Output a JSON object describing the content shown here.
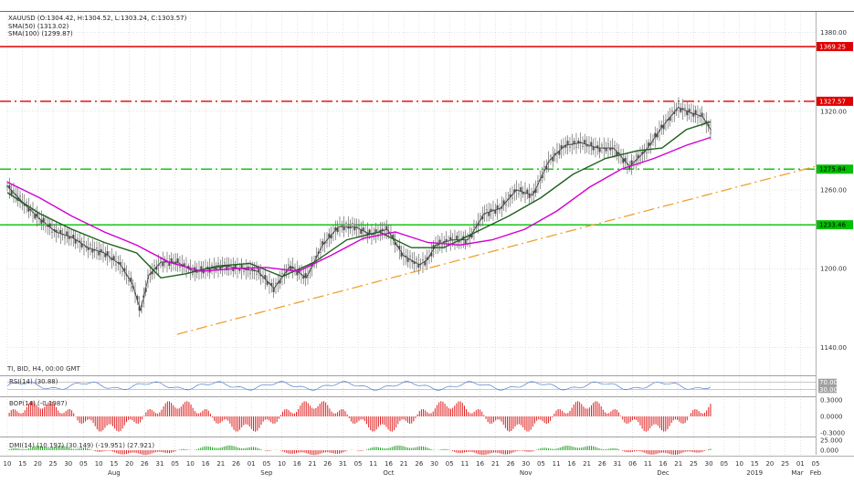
{
  "chart_data": [
    {
      "type": "line",
      "symbol": "XAUUSD",
      "legend": {
        "ohlc": "XAUUSD (O:1304.42, H:1304.52, L:1303.24, C:1303.57)",
        "sma50": "SMA(50) (1313.02)",
        "sma100": "SMA(100) (1299.87)",
        "footer": "TI, BID, H4, 00:00 GMT"
      },
      "ylim": [
        1125,
        1395
      ],
      "y_ticks": [
        "1380.00",
        "1320.00",
        "1260.00",
        "1200.00",
        "1140.00"
      ],
      "x_tick_labels": [
        "10",
        "15",
        "20",
        "25",
        "30",
        "05",
        "10",
        "15",
        "20",
        "26",
        "31",
        "05",
        "10",
        "16",
        "21",
        "26",
        "01",
        "05",
        "10",
        "16",
        "21",
        "26",
        "31",
        "05",
        "11",
        "16",
        "21",
        "26",
        "30",
        "05",
        "11",
        "16",
        "21",
        "26",
        "30",
        "05",
        "11",
        "16",
        "21",
        "26",
        "31",
        "06",
        "11",
        "16",
        "21",
        "25",
        "30",
        "05",
        "10",
        "15",
        "20",
        "25",
        "01",
        "05"
      ],
      "month_labels": [
        "Aug",
        "Sep",
        "Oct",
        "Nov",
        "Dec",
        "2019",
        "Feb",
        "Mar"
      ],
      "horizontal_levels": [
        {
          "value": 1369.25,
          "label": "1369.25",
          "color": "#e00000",
          "style": "solid"
        },
        {
          "value": 1327.57,
          "label": "1327.57",
          "color": "#e00000",
          "style": "dashdot"
        },
        {
          "value": 1275.84,
          "label": "1275.84",
          "color": "#00c000",
          "style": "dashdot"
        },
        {
          "value": 1233.46,
          "label": "1233.46",
          "color": "#00c000",
          "style": "solid"
        }
      ],
      "trendline": {
        "x": [
          0.21,
          1.0
        ],
        "y": [
          1150,
          1278
        ],
        "color": "#f0a030",
        "style": "dashdot"
      },
      "series": [
        {
          "name": "XAUUSD",
          "color": "#404040",
          "x": [
            0.0,
            0.02,
            0.04,
            0.06,
            0.08,
            0.1,
            0.12,
            0.14,
            0.155,
            0.165,
            0.175,
            0.19,
            0.21,
            0.23,
            0.25,
            0.27,
            0.29,
            0.31,
            0.33,
            0.35,
            0.37,
            0.39,
            0.41,
            0.43,
            0.45,
            0.47,
            0.49,
            0.51,
            0.52,
            0.53,
            0.55,
            0.57,
            0.59,
            0.61,
            0.63,
            0.65,
            0.67,
            0.69,
            0.71,
            0.73,
            0.75,
            0.77,
            0.79,
            0.81,
            0.83,
            0.845,
            0.86,
            0.87
          ],
          "y": [
            1263,
            1250,
            1238,
            1228,
            1224,
            1216,
            1212,
            1203,
            1188,
            1168,
            1195,
            1205,
            1205,
            1198,
            1200,
            1202,
            1200,
            1198,
            1185,
            1202,
            1193,
            1218,
            1232,
            1232,
            1226,
            1230,
            1210,
            1203,
            1207,
            1218,
            1222,
            1222,
            1242,
            1246,
            1260,
            1256,
            1282,
            1294,
            1296,
            1292,
            1292,
            1278,
            1290,
            1308,
            1323,
            1319,
            1316,
            1306
          ]
        },
        {
          "name": "SMA(50)",
          "color": "#206020",
          "x": [
            0.0,
            0.04,
            0.08,
            0.12,
            0.16,
            0.19,
            0.22,
            0.26,
            0.3,
            0.34,
            0.38,
            0.42,
            0.46,
            0.5,
            0.54,
            0.58,
            0.62,
            0.66,
            0.7,
            0.74,
            0.78,
            0.81,
            0.84,
            0.87
          ],
          "y": [
            1258,
            1242,
            1230,
            1220,
            1212,
            1193,
            1196,
            1202,
            1204,
            1194,
            1205,
            1222,
            1228,
            1216,
            1216,
            1228,
            1240,
            1254,
            1272,
            1284,
            1290,
            1292,
            1306,
            1312
          ]
        },
        {
          "name": "SMA(100)",
          "color": "#d000d0",
          "x": [
            0.0,
            0.04,
            0.08,
            0.12,
            0.16,
            0.2,
            0.24,
            0.28,
            0.32,
            0.36,
            0.4,
            0.44,
            0.48,
            0.52,
            0.56,
            0.6,
            0.64,
            0.68,
            0.72,
            0.76,
            0.8,
            0.84,
            0.87
          ],
          "y": [
            1266,
            1254,
            1240,
            1228,
            1218,
            1205,
            1198,
            1200,
            1201,
            1198,
            1210,
            1223,
            1228,
            1220,
            1218,
            1222,
            1230,
            1244,
            1262,
            1276,
            1284,
            1294,
            1300
          ]
        }
      ]
    },
    {
      "type": "line",
      "indicator": "RSI",
      "label": "RSI(14) (30.88)",
      "levels": [
        "70.00",
        "30.00"
      ],
      "color": "#5080d0"
    },
    {
      "type": "bar",
      "indicator": "BOP",
      "label": "BOP(14) (-0.1987)",
      "y_ticks": [
        "0.3000",
        "0.0000",
        "-0.3000"
      ],
      "color": "#e02020"
    },
    {
      "type": "bar",
      "indicator": "DMI",
      "label": "DMI(14) (10.197) (30.149) (-19.951) (27.921)",
      "y_ticks": [
        "25.000",
        "0.000"
      ],
      "colors": [
        "#20a020",
        "#e02020"
      ]
    }
  ]
}
